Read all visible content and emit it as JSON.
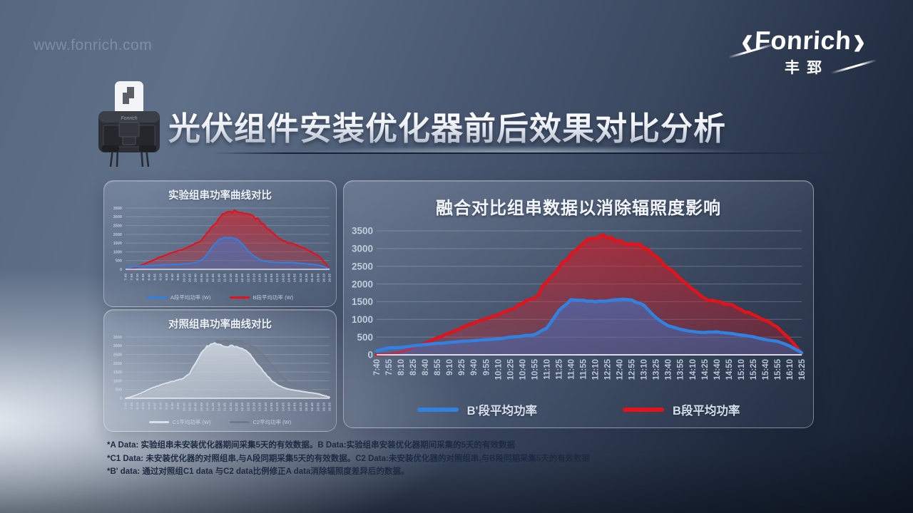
{
  "watermark": "www.fonrich.com",
  "logo": {
    "bracket_left": "‹",
    "name": "Fonrich",
    "bracket_right": "›",
    "cn": "丰郅"
  },
  "header": {
    "title": "光伏组件安装优化器前后效果对比分析"
  },
  "colors": {
    "accent_blue": "#3181e0",
    "accent_red": "#e2131b",
    "gray_light": "#d9e0e9",
    "gray_dark": "#707a8a"
  },
  "footnotes": {
    "lines": [
      "*A Data: 实验组串未安装优化器期间采集5天的有效数据。B Data:实验组串安装优化器期间采集的5天的有效数据",
      "*C1 Data: 未安装优化器的对照组串,与A段同期采集5天的有效数据。C2 Data:未安装优化器的对照组串,与B段同期采集5天的有效数据",
      "*B' data: 通过对照组C1 data 与C2 data比例修正A data消除辐照度差异后的数据。"
    ]
  },
  "chart_data": [
    {
      "type": "area",
      "title": "实验组串功率曲线对比",
      "xlabel": "",
      "ylabel": "",
      "ylim": [
        0,
        3500
      ],
      "yticks": [
        0,
        500,
        1000,
        1500,
        2000,
        2500,
        3000,
        3500
      ],
      "grid": true,
      "legend_position": "bottom",
      "categories": [
        "7:40",
        "7:55",
        "8:10",
        "8:25",
        "8:40",
        "8:55",
        "9:10",
        "9:25",
        "9:40",
        "9:55",
        "10:10",
        "10:25",
        "10:40",
        "10:55",
        "11:10",
        "11:25",
        "11:40",
        "11:55",
        "12:10",
        "12:25",
        "12:40",
        "12:55",
        "13:10",
        "13:25",
        "13:40",
        "13:55",
        "14:10",
        "14:25",
        "14:40",
        "14:55",
        "15:10",
        "15:25",
        "15:40",
        "15:55",
        "16:10",
        "16:25"
      ],
      "series": [
        {
          "name": "A段平均功率  (W)",
          "color": "#3181e0",
          "z": 2,
          "jitter": 0.02,
          "area_opacity": [
            0.72,
            0.3
          ],
          "values": [
            0,
            150,
            160,
            190,
            210,
            230,
            250,
            265,
            280,
            295,
            310,
            330,
            380,
            520,
            850,
            1350,
            1680,
            1820,
            1830,
            1740,
            1450,
            1050,
            760,
            560,
            450,
            410,
            390,
            385,
            395,
            375,
            345,
            315,
            290,
            245,
            150,
            20
          ]
        },
        {
          "name": "B段平均功率  (W)",
          "color": "#e2131b",
          "z": 1,
          "jitter": 0.03,
          "area_opacity": [
            0.6,
            0.22
          ],
          "values": [
            0,
            30,
            120,
            280,
            420,
            560,
            700,
            820,
            950,
            1060,
            1160,
            1320,
            1500,
            1650,
            2100,
            2500,
            2900,
            3180,
            3300,
            3310,
            3240,
            3160,
            3010,
            2790,
            2460,
            2160,
            1860,
            1610,
            1510,
            1440,
            1290,
            1140,
            990,
            790,
            460,
            40
          ]
        }
      ]
    },
    {
      "type": "area",
      "title": "对照组串功率曲线对比",
      "xlabel": "",
      "ylabel": "",
      "ylim": [
        0,
        3500
      ],
      "yticks": [
        0,
        500,
        1000,
        1500,
        2000,
        2500,
        3000,
        3500
      ],
      "grid": true,
      "legend_position": "bottom",
      "categories": [
        "7:40",
        "7:55",
        "8:10",
        "8:25",
        "8:40",
        "8:55",
        "9:10",
        "9:25",
        "9:40",
        "9:55",
        "10:10",
        "10:25",
        "10:40",
        "10:55",
        "11:10",
        "11:25",
        "11:40",
        "11:55",
        "12:10",
        "12:25",
        "12:40",
        "12:55",
        "13:10",
        "13:25",
        "13:40",
        "13:55",
        "14:10",
        "14:25",
        "14:40",
        "14:55",
        "15:10",
        "15:25",
        "15:40",
        "15:55",
        "16:10",
        "16:25"
      ],
      "series": [
        {
          "name": "C1平均功率  (W)",
          "color": "#d9e0e9",
          "z": 2,
          "jitter": 0.025,
          "area_opacity": [
            0.85,
            0.42
          ],
          "values": [
            0,
            80,
            200,
            350,
            500,
            640,
            760,
            870,
            960,
            1040,
            1150,
            1400,
            2000,
            2600,
            3000,
            3120,
            3080,
            2950,
            3020,
            2960,
            2850,
            2620,
            2230,
            1820,
            1420,
            1020,
            780,
            620,
            520,
            460,
            410,
            360,
            310,
            260,
            160,
            60
          ]
        },
        {
          "name": "C2平均功率  (W)",
          "color": "#707a8a",
          "z": 1,
          "jitter": 0.025,
          "area_opacity": [
            0.55,
            0.2
          ],
          "values": [
            0,
            60,
            170,
            310,
            460,
            600,
            720,
            830,
            930,
            1020,
            1140,
            1350,
            1750,
            2300,
            2850,
            3150,
            3280,
            3300,
            3270,
            3300,
            3220,
            3120,
            2950,
            2700,
            2350,
            1950,
            1520,
            1150,
            900,
            760,
            660,
            560,
            460,
            360,
            220,
            70
          ]
        }
      ]
    },
    {
      "type": "area",
      "title": "融合对比组串数据以消除辐照度影响",
      "xlabel": "",
      "ylabel": "",
      "ylim": [
        0,
        3500
      ],
      "yticks": [
        0,
        500,
        1000,
        1500,
        2000,
        2500,
        3000,
        3500
      ],
      "grid": true,
      "legend_position": "bottom",
      "categories": [
        "7:40",
        "7:55",
        "8:10",
        "8:25",
        "8:40",
        "8:55",
        "9:10",
        "9:25",
        "9:40",
        "9:55",
        "10:10",
        "10:25",
        "10:40",
        "10:55",
        "11:10",
        "11:25",
        "11:40",
        "11:55",
        "12:10",
        "12:25",
        "12:40",
        "12:55",
        "13:10",
        "13:25",
        "13:40",
        "13:55",
        "14:10",
        "14:25",
        "14:40",
        "14:55",
        "15:10",
        "15:25",
        "15:40",
        "15:55",
        "16:10",
        "16:25"
      ],
      "series": [
        {
          "name": "B'段平均功率",
          "color": "#3181e0",
          "z": 2,
          "jitter": 0.012,
          "area_opacity": [
            0.72,
            0.3
          ],
          "values": [
            110,
            200,
            210,
            250,
            290,
            320,
            350,
            380,
            400,
            430,
            450,
            500,
            530,
            570,
            750,
            1250,
            1560,
            1540,
            1500,
            1520,
            1560,
            1550,
            1400,
            1050,
            820,
            720,
            660,
            630,
            650,
            610,
            560,
            510,
            430,
            380,
            250,
            60
          ]
        },
        {
          "name": "B段平均功率",
          "color": "#e2131b",
          "z": 1,
          "jitter": 0.028,
          "area_opacity": [
            0.6,
            0.22
          ],
          "values": [
            0,
            20,
            80,
            200,
            330,
            480,
            620,
            760,
            900,
            1020,
            1120,
            1280,
            1450,
            1600,
            2050,
            2450,
            2850,
            3150,
            3280,
            3300,
            3230,
            3150,
            3000,
            2780,
            2450,
            2150,
            1850,
            1600,
            1500,
            1430,
            1280,
            1130,
            980,
            780,
            450,
            40
          ]
        }
      ]
    }
  ]
}
